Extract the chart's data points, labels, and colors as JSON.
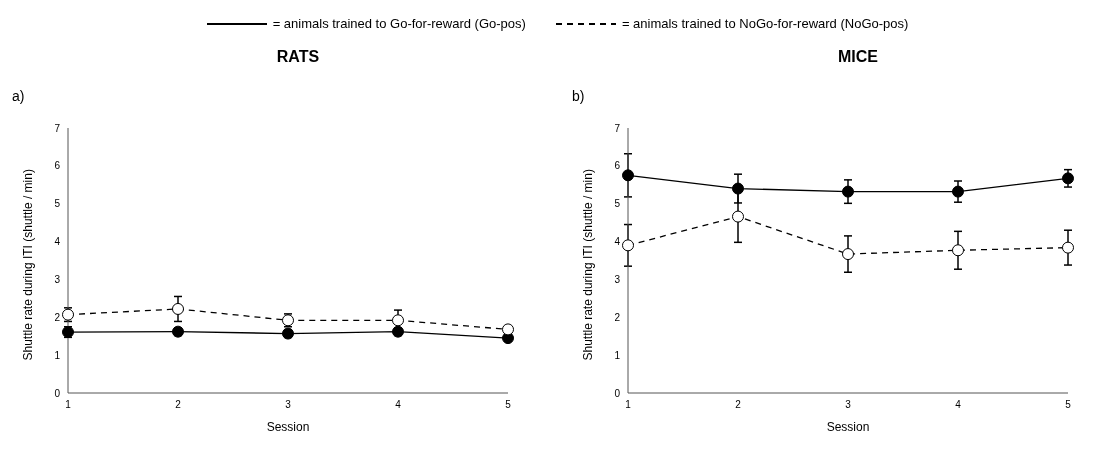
{
  "chart_data": [
    {
      "type": "line",
      "title": "RATS",
      "annotations": [
        "a)"
      ],
      "xlabel": "Session",
      "ylabel": "Shuttle rate during ITI (shuttle / min)",
      "categories": [
        "1",
        "2",
        "3",
        "4",
        "5"
      ],
      "ylim": [
        0,
        7
      ],
      "yticks": [
        0,
        1,
        2,
        3,
        4,
        5,
        6,
        7
      ],
      "grid": false,
      "legend": "top",
      "marker": "circle",
      "series": [
        {
          "name": "= animals trained to Go-for-reward (Go-pos)",
          "color": "#000000",
          "line_style": "solid",
          "values": [
            1.61,
            1.62,
            1.57,
            1.62,
            1.45
          ],
          "errors": [
            0.14,
            0.1,
            0.1,
            0.1,
            0.06
          ]
        },
        {
          "name": "= animals trained to NoGo-for-reward (NoGo-pos)",
          "color": "#000000",
          "line_style": "dashed",
          "values": [
            2.07,
            2.22,
            1.92,
            1.92,
            1.68
          ],
          "errors": [
            0.18,
            0.33,
            0.17,
            0.27,
            null
          ]
        }
      ]
    },
    {
      "type": "line",
      "title": "MICE",
      "annotations": [
        "b)"
      ],
      "xlabel": "Session",
      "ylabel": "Shuttle rate during ITI (shuttle / min)",
      "categories": [
        "1",
        "2",
        "3",
        "4",
        "5"
      ],
      "ylim": [
        0,
        7
      ],
      "yticks": [
        0,
        1,
        2,
        3,
        4,
        5,
        6,
        7
      ],
      "grid": false,
      "marker": "circle",
      "series": [
        {
          "color": "#000000",
          "line_style": "solid",
          "values": [
            5.75,
            5.4,
            5.32,
            5.32,
            5.67
          ],
          "errors": [
            0.57,
            0.38,
            0.31,
            0.28,
            0.23
          ]
        },
        {
          "color": "#000000",
          "line_style": "dashed",
          "values": [
            3.9,
            4.66,
            3.67,
            3.77,
            3.84
          ],
          "errors": [
            0.55,
            0.68,
            0.48,
            0.5,
            0.46
          ]
        }
      ]
    }
  ]
}
